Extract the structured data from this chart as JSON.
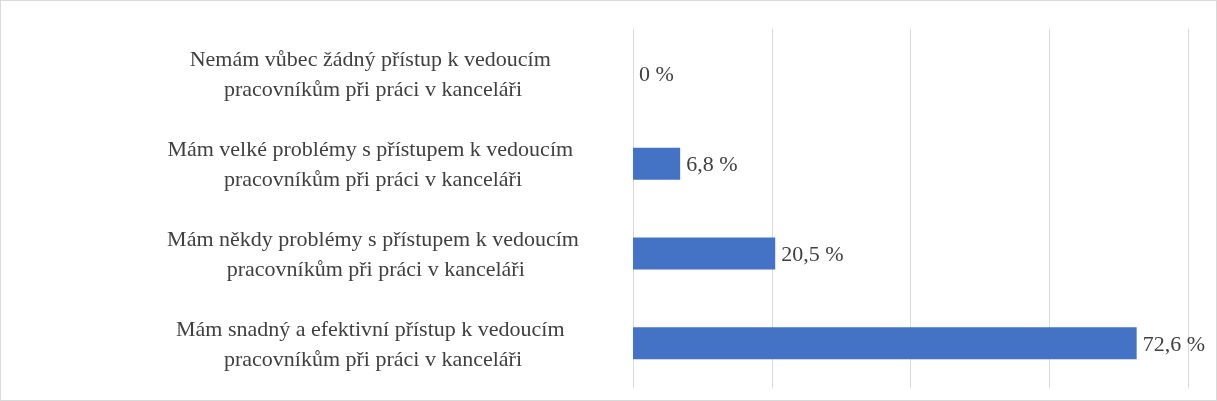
{
  "chart_data": {
    "type": "bar",
    "orientation": "horizontal",
    "categories": [
      "Nemám vůbec žádný přístup k vedoucím pracovníkům při práci v kanceláři",
      "Mám velké problémy s přístupem k vedoucím pracovníkům při práci v kanceláři",
      "Mám někdy problémy s přístupem k vedoucím pracovníkům při práci v kanceláři",
      "Mám snadný a efektivní přístup k vedoucím pracovníkům při práci v kanceláři"
    ],
    "values": [
      0,
      6.8,
      20.5,
      72.6
    ],
    "value_labels": [
      "0 %",
      "6,8 %",
      "20,5 %",
      "72,6 %"
    ],
    "color": "#4472c4",
    "xlim": [
      0,
      80
    ],
    "xticks": [
      {
        "value": 0,
        "label": null
      },
      {
        "value": 20,
        "label": null
      },
      {
        "value": 40,
        "label": null
      },
      {
        "value": 60,
        "label": null
      },
      {
        "value": 80,
        "label": null
      }
    ],
    "grid": "x",
    "tick_labels": "y"
  }
}
